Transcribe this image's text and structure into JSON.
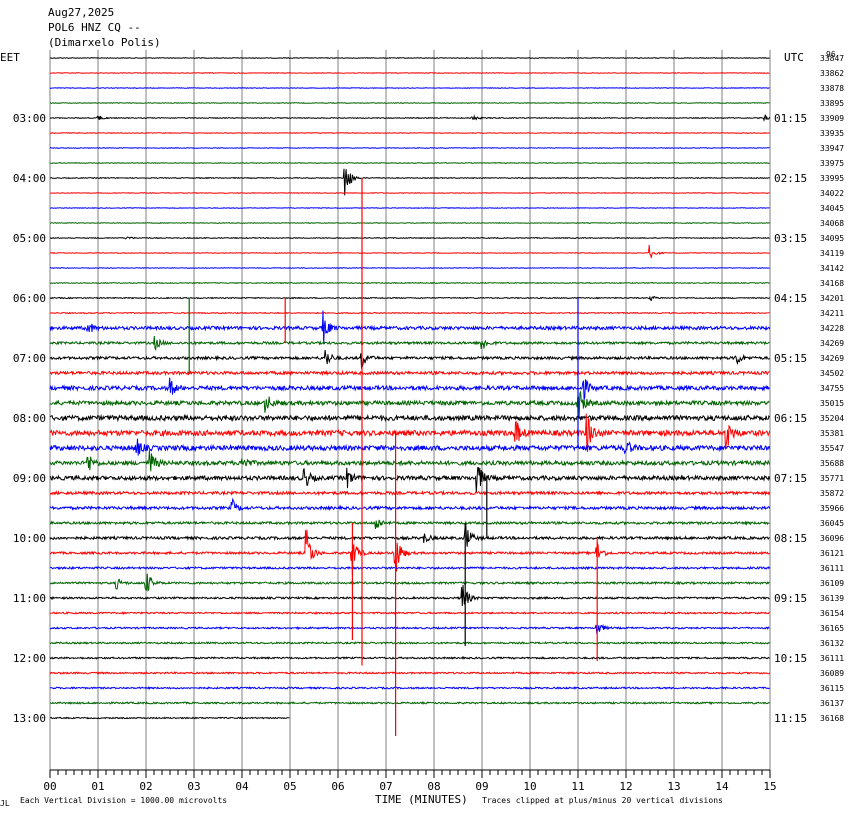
{
  "header": {
    "date": "Aug27,2025",
    "station": "POL6 HNZ CQ --",
    "location": "(Dimarxelo Polis)"
  },
  "left_tz": "EET",
  "right_tz": "UTC",
  "counts_header": "96",
  "footer": {
    "vertical_division": "Each Vertical Division = 1000.00 microvolts",
    "x_title": "TIME (MINUTES)",
    "clip_note": "Traces clipped at plus/minus 20 vertical divisions",
    "corner_mark": "JL"
  },
  "colors": {
    "black": "#000000",
    "red": "#ff0000",
    "blue": "#0000ff",
    "green": "#006400",
    "grid": "#808080"
  },
  "chart_data": {
    "type": "helicorder",
    "x_range_minutes": [
      0,
      15
    ],
    "x_ticks": [
      "00",
      "01",
      "02",
      "03",
      "04",
      "05",
      "06",
      "07",
      "08",
      "09",
      "10",
      "11",
      "12",
      "13",
      "14",
      "15"
    ],
    "grid": true,
    "rows_per_hour": 4,
    "left_hour_labels": [
      {
        "row": 4,
        "label": "03:00"
      },
      {
        "row": 8,
        "label": "04:00"
      },
      {
        "row": 12,
        "label": "05:00"
      },
      {
        "row": 16,
        "label": "06:00"
      },
      {
        "row": 20,
        "label": "07:00"
      },
      {
        "row": 24,
        "label": "08:00"
      },
      {
        "row": 28,
        "label": "09:00"
      },
      {
        "row": 32,
        "label": "10:00"
      },
      {
        "row": 36,
        "label": "11:00"
      },
      {
        "row": 40,
        "label": "12:00"
      },
      {
        "row": 44,
        "label": "13:00"
      }
    ],
    "right_hour_labels": [
      {
        "row": 4,
        "label": "01:15"
      },
      {
        "row": 8,
        "label": "02:15"
      },
      {
        "row": 12,
        "label": "03:15"
      },
      {
        "row": 16,
        "label": "04:15"
      },
      {
        "row": 20,
        "label": "05:15"
      },
      {
        "row": 24,
        "label": "06:15"
      },
      {
        "row": 28,
        "label": "07:15"
      },
      {
        "row": 32,
        "label": "08:15"
      },
      {
        "row": 36,
        "label": "09:15"
      },
      {
        "row": 40,
        "label": "10:15"
      },
      {
        "row": 44,
        "label": "11:15"
      }
    ],
    "row_counts": [
      "33847",
      "33862",
      "33878",
      "33895",
      "33909",
      "33935",
      "33947",
      "33975",
      "33995",
      "34022",
      "34045",
      "34068",
      "34095",
      "34119",
      "34142",
      "34168",
      "34201",
      "34211",
      "34228",
      "34269",
      "34269",
      "34502",
      "34755",
      "35015",
      "35204",
      "35381",
      "35547",
      "35688",
      "35771",
      "35872",
      "35966",
      "36045",
      "36096",
      "36121",
      "36111",
      "36109",
      "36139",
      "36154",
      "36165",
      "36132",
      "36111",
      "36089",
      "36115",
      "36137",
      "36168"
    ],
    "row_noise": [
      0.3,
      0.3,
      0.3,
      0.3,
      0.4,
      0.3,
      0.3,
      0.3,
      0.4,
      0.3,
      0.3,
      0.3,
      0.4,
      0.3,
      0.3,
      0.4,
      0.5,
      0.5,
      1.6,
      1.2,
      1.3,
      1.5,
      2.0,
      2.0,
      2.4,
      2.6,
      2.4,
      2.0,
      2.0,
      1.4,
      1.4,
      1.2,
      1.3,
      1.1,
      1.0,
      1.0,
      0.9,
      0.8,
      0.8,
      0.8,
      0.8,
      0.8,
      0.8,
      0.8,
      0.6
    ],
    "last_row_end_minute": 5.0,
    "events": [
      {
        "row": 4,
        "minute": 1.0,
        "amp": 3
      },
      {
        "row": 4,
        "minute": 8.8,
        "amp": 3
      },
      {
        "row": 4,
        "minute": 14.9,
        "amp": 3
      },
      {
        "row": 8,
        "minute": 6.15,
        "amp": 22
      },
      {
        "row": 12,
        "minute": 1.6,
        "amp": 2
      },
      {
        "row": 13,
        "minute": 12.5,
        "amp": 8
      },
      {
        "row": 16,
        "minute": 12.5,
        "amp": 3
      },
      {
        "row": 18,
        "minute": 5.7,
        "amp": 16
      },
      {
        "row": 18,
        "minute": 0.8,
        "amp": 6
      },
      {
        "row": 19,
        "minute": 9.0,
        "amp": 9
      },
      {
        "row": 19,
        "minute": 2.2,
        "amp": 6
      },
      {
        "row": 20,
        "minute": 5.75,
        "amp": 10
      },
      {
        "row": 20,
        "minute": 6.5,
        "amp": 10
      },
      {
        "row": 20,
        "minute": 14.3,
        "amp": 8
      },
      {
        "row": 22,
        "minute": 2.5,
        "amp": 10
      },
      {
        "row": 22,
        "minute": 11.1,
        "amp": 14
      },
      {
        "row": 23,
        "minute": 4.5,
        "amp": 10
      },
      {
        "row": 23,
        "minute": 11.0,
        "amp": 20
      },
      {
        "row": 25,
        "minute": 9.7,
        "amp": 14
      },
      {
        "row": 25,
        "minute": 11.2,
        "amp": 20
      },
      {
        "row": 25,
        "minute": 14.1,
        "amp": 16
      },
      {
        "row": 26,
        "minute": 1.8,
        "amp": 10
      },
      {
        "row": 26,
        "minute": 12.0,
        "amp": 8
      },
      {
        "row": 27,
        "minute": 0.8,
        "amp": 10
      },
      {
        "row": 27,
        "minute": 2.1,
        "amp": 12
      },
      {
        "row": 27,
        "minute": 4.0,
        "amp": 10
      },
      {
        "row": 28,
        "minute": 5.3,
        "amp": 12
      },
      {
        "row": 28,
        "minute": 6.2,
        "amp": 9
      },
      {
        "row": 28,
        "minute": 8.9,
        "amp": 18
      },
      {
        "row": 30,
        "minute": 3.8,
        "amp": 8
      },
      {
        "row": 31,
        "minute": 6.8,
        "amp": 8
      },
      {
        "row": 32,
        "minute": 8.65,
        "amp": 18
      },
      {
        "row": 32,
        "minute": 7.8,
        "amp": 5
      },
      {
        "row": 33,
        "minute": 5.35,
        "amp": 26
      },
      {
        "row": 33,
        "minute": 6.3,
        "amp": 22
      },
      {
        "row": 33,
        "minute": 7.2,
        "amp": 26
      },
      {
        "row": 33,
        "minute": 11.4,
        "amp": 12
      },
      {
        "row": 35,
        "minute": 2.0,
        "amp": 14
      },
      {
        "row": 35,
        "minute": 1.4,
        "amp": 5
      },
      {
        "row": 36,
        "minute": 8.6,
        "amp": 18
      },
      {
        "row": 38,
        "minute": 11.4,
        "amp": 8
      }
    ],
    "long_spikes": [
      {
        "row": 8,
        "minute": 6.5,
        "y_to_row": 40.5,
        "color": "red"
      },
      {
        "row": 25,
        "minute": 7.2,
        "y_to_row": 45.2,
        "color": "red"
      },
      {
        "row": 28,
        "minute": 9.1,
        "y_to_row": 32.0,
        "color": "black"
      },
      {
        "row": 31,
        "minute": 6.3,
        "y_to_row": 38.8,
        "color": "red"
      },
      {
        "row": 31,
        "minute": 8.65,
        "y_to_row": 39.2,
        "color": "black"
      },
      {
        "row": 32,
        "minute": 11.4,
        "y_to_row": 40.2,
        "color": "red"
      },
      {
        "row": 16,
        "minute": 11.0,
        "y_to_row": 26.0,
        "color": "blue"
      },
      {
        "row": 16,
        "minute": 2.9,
        "y_to_row": 21.0,
        "color": "green"
      },
      {
        "row": 16,
        "minute": 4.9,
        "y_to_row": 19.0,
        "color": "red"
      }
    ]
  }
}
